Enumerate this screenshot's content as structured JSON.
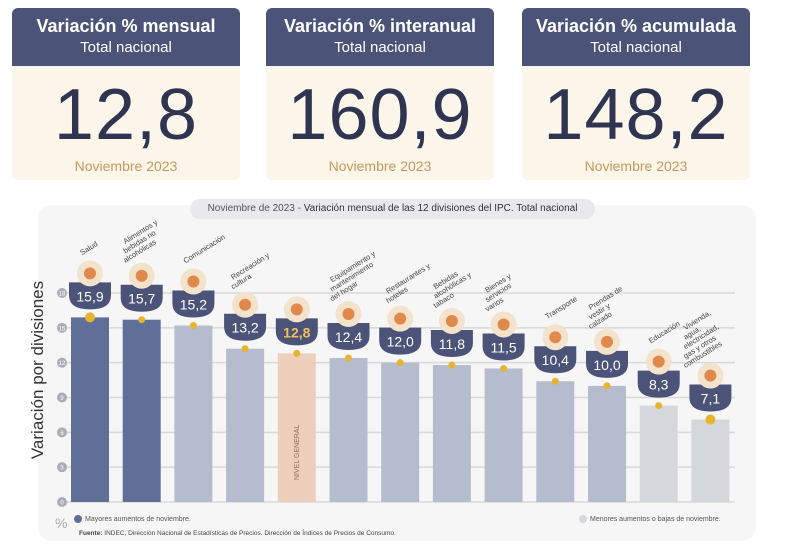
{
  "cards": [
    {
      "title": "Variación % mensual",
      "subtitle": "Total nacional",
      "value": "12,8",
      "date": "Noviembre 2023"
    },
    {
      "title": "Variación % interanual",
      "subtitle": "Total nacional",
      "value": "160,9",
      "date": "Noviembre 2023"
    },
    {
      "title": "Variación % acumulada",
      "subtitle": "Total nacional",
      "value": "148,2",
      "date": "Noviembre 2023"
    }
  ],
  "chart_data": {
    "type": "bar",
    "title_date": "Noviembre de 2023",
    "title": "Variación mensual de las 12 divisiones del IPC. Total nacional",
    "ylabel": "Variación por divisiones",
    "yunit": "%",
    "ylim": [
      0,
      18
    ],
    "yticks": [
      0,
      3,
      6,
      9,
      12,
      15,
      18
    ],
    "categories": [
      "Salud",
      "Alimentos y bebidas no alcohólicas",
      "Comunicación",
      "Recreación y cultura",
      "Nivel general",
      "Equipamiento y mantenimiento del hogar",
      "Restaurantes y hoteles",
      "Bebidas alcohólicas y tabaco",
      "Bienes y servicios varios",
      "Transporte",
      "Prendas de vestir y calzado",
      "Educación",
      "Vivienda, agua, electricidad, gas y otros combustibles"
    ],
    "values": [
      15.9,
      15.7,
      15.2,
      13.2,
      12.8,
      12.4,
      12.0,
      11.8,
      11.5,
      10.4,
      10.0,
      8.3,
      7.1
    ],
    "labels": [
      "15,9",
      "15,7",
      "15,2",
      "13,2",
      "12,8",
      "12,4",
      "12,0",
      "11,8",
      "11,5",
      "10,4",
      "10,0",
      "8,3",
      "7,1"
    ],
    "groups": [
      "high",
      "high",
      "mid",
      "mid",
      "general",
      "mid",
      "mid",
      "mid",
      "mid",
      "mid",
      "mid",
      "low",
      "low"
    ],
    "general_bar_label": "NIVEL GENERAL",
    "colors": {
      "high": "#5f6f97",
      "mid": "#b4bccd",
      "general": "#ecd0bb",
      "low": "#d4d7dc",
      "badge": "#4b5478",
      "dot": "#e6b42f",
      "general_text": "#f2c05a"
    },
    "legend": {
      "high": "Mayores aumentos de noviembre.",
      "low": "Menores aumentos o bajas de noviembre."
    }
  },
  "source_label": "Fuente:",
  "source": "INDEC, Dirección Nacional de Estadísticas de Precios. Dirección de Índices de Precios de Consumo."
}
